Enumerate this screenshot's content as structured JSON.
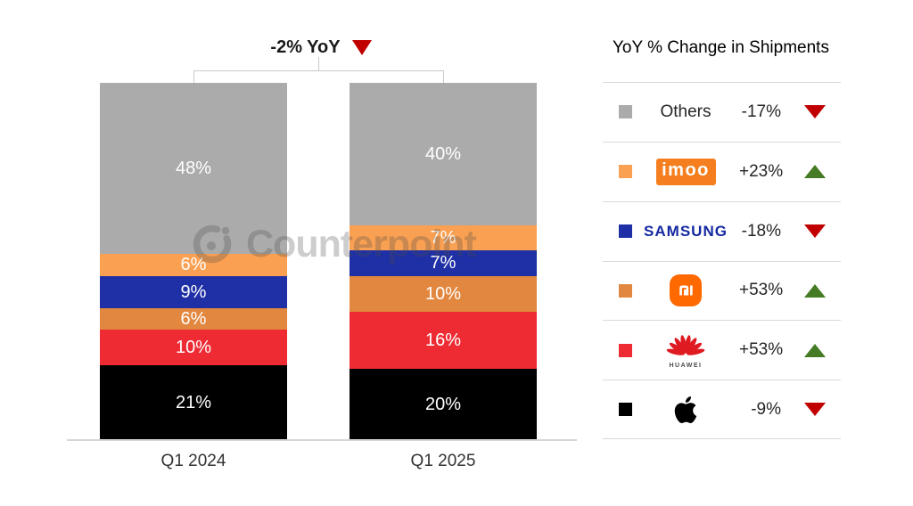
{
  "watermark": {
    "text": "Counterpoint"
  },
  "colors": {
    "red_down": "#C00000",
    "green_up": "#457B24",
    "axis": "#D6D6D6",
    "divider": "#D9D9D9",
    "samsung_blue": "#1428A0",
    "imoo_orange": "#F57E1E",
    "mi_orange": "#FF6900",
    "huawei_red": "#DF1A21",
    "apple_black": "#000000"
  },
  "chart_data": {
    "type": "bar",
    "stacked": true,
    "title": "",
    "annotation": {
      "text": "-2% YoY",
      "direction": "down"
    },
    "legend_title": "YoY % Change in Shipments",
    "legend_position": "right",
    "grid": false,
    "ylim": [
      0,
      100
    ],
    "unit": "%",
    "categories": [
      "Q1 2024",
      "Q1 2025"
    ],
    "series": [
      {
        "name": "Others",
        "display": "text",
        "color": "#ABABAB",
        "values": [
          48,
          40
        ],
        "change": "-17%",
        "direction": "down"
      },
      {
        "name": "imoo",
        "display": "imoo-logo",
        "logo_text": "imoo",
        "color": "#FAA052",
        "values": [
          6,
          7
        ],
        "change": "+23%",
        "direction": "up"
      },
      {
        "name": "Samsung",
        "display": "samsung-logo",
        "logo_text": "SAMSUNG",
        "color": "#1F30A6",
        "values": [
          9,
          7
        ],
        "change": "-18%",
        "direction": "down"
      },
      {
        "name": "Xiaomi",
        "display": "mi-logo",
        "color": "#E2873F",
        "values": [
          6,
          10
        ],
        "change": "+53%",
        "direction": "up"
      },
      {
        "name": "Huawei",
        "display": "huawei-logo",
        "logo_text": "HUAWEI",
        "color": "#EE2B33",
        "values": [
          10,
          16
        ],
        "change": "+53%",
        "direction": "up"
      },
      {
        "name": "Apple",
        "display": "apple-logo",
        "color": "#000000",
        "values": [
          21,
          20
        ],
        "change": "-9%",
        "direction": "down"
      }
    ]
  }
}
